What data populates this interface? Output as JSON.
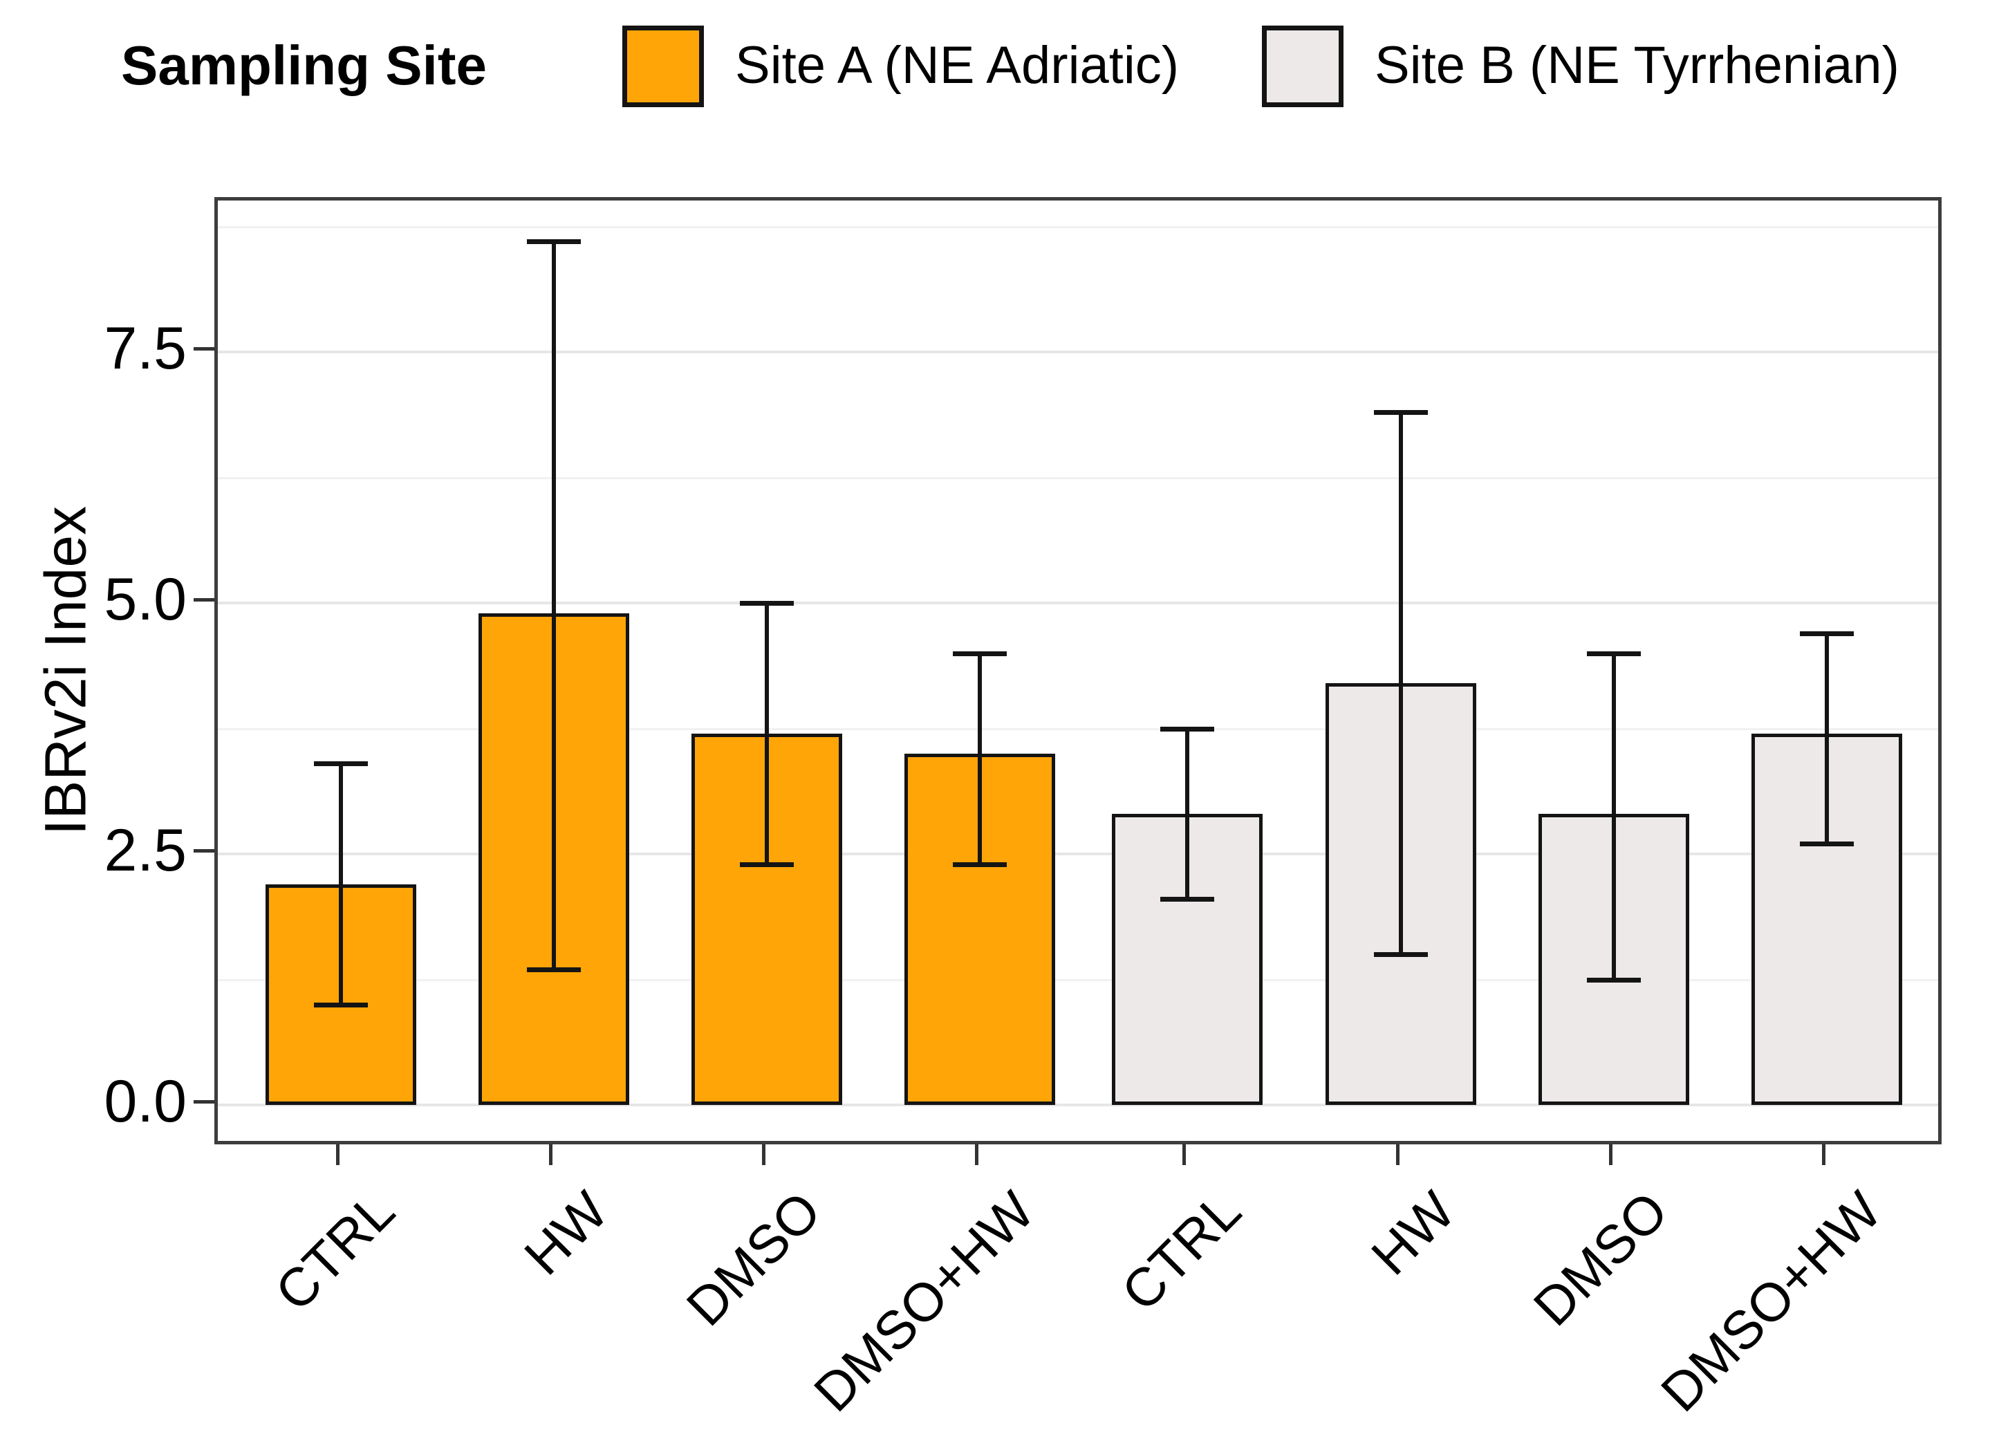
{
  "figure": {
    "legend": {
      "title": "Sampling Site",
      "items": [
        {
          "label": "Site A (NE Adriatic)",
          "color": "#FFA507"
        },
        {
          "label": "Site B (NE Tyrrhenian)",
          "color": "#ECE9E8"
        }
      ]
    }
  },
  "chart_data": {
    "type": "bar",
    "title": "",
    "ylabel": "IBRv2i Index",
    "xlabel": "",
    "categories": [
      "CTRL",
      "HW",
      "DMSO",
      "DMSO+HW",
      "CTRL",
      "HW",
      "DMSO",
      "DMSO+HW"
    ],
    "series": [
      {
        "name": "Site A (NE Adriatic)",
        "color": "#FFA507",
        "category_indices": [
          0,
          1,
          2,
          3
        ],
        "values": [
          2.2,
          4.9,
          3.7,
          3.5
        ],
        "error_upper": [
          3.4,
          8.6,
          5.0,
          4.5
        ],
        "error_lower": [
          1.0,
          1.35,
          2.4,
          2.4
        ]
      },
      {
        "name": "Site B (NE Tyrrhenian)",
        "color": "#ECE9E8",
        "category_indices": [
          4,
          5,
          6,
          7
        ],
        "values": [
          2.9,
          4.2,
          2.9,
          3.7
        ],
        "error_upper": [
          3.75,
          6.9,
          4.5,
          4.7
        ],
        "error_lower": [
          2.05,
          1.5,
          1.25,
          2.6
        ]
      }
    ],
    "ylim": [
      0,
      9
    ],
    "yticks": [
      0.0,
      2.5,
      5.0,
      7.5
    ],
    "ytick_labels": [
      "0.0",
      "2.5",
      "5.0",
      "7.5"
    ],
    "minor_gridlines": [
      1.25,
      3.75,
      6.25,
      8.75
    ],
    "grid": "horizontal-major-and-minor",
    "legend_position": "top",
    "error_bar_style": "caps",
    "bar_outline_color": "#141414"
  }
}
